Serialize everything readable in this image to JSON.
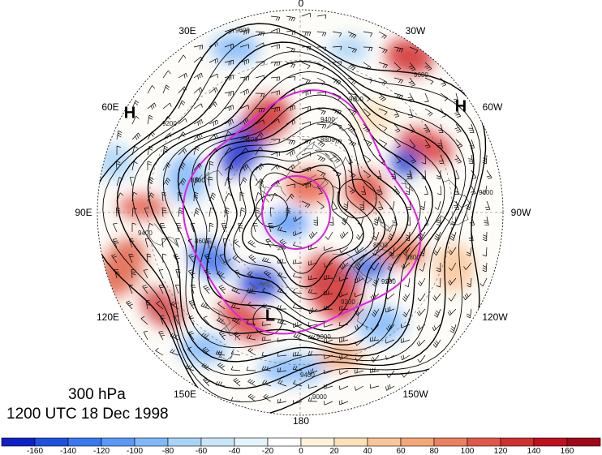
{
  "title": {
    "level": "300 hPa",
    "datetime": "1200 UTC 18 Dec 1998"
  },
  "longitude_labels": [
    {
      "text": "0",
      "lon": 0
    },
    {
      "text": "30W",
      "lon": -30
    },
    {
      "text": "60W",
      "lon": -60
    },
    {
      "text": "90W",
      "lon": -90
    },
    {
      "text": "120W",
      "lon": -120
    },
    {
      "text": "150W",
      "lon": -150
    },
    {
      "text": "180",
      "lon": 180
    },
    {
      "text": "150E",
      "lon": 150
    },
    {
      "text": "120E",
      "lon": 120
    },
    {
      "text": "90E",
      "lon": 90
    },
    {
      "text": "60E",
      "lon": 60
    },
    {
      "text": "30E",
      "lon": 30
    }
  ],
  "pressure_centers": [
    {
      "text": "H",
      "lon": 60,
      "lat": 24
    },
    {
      "text": "H",
      "lon": -60,
      "lat": 24
    },
    {
      "text": "L",
      "lon": 170,
      "lat": 48
    }
  ],
  "contour_labels": [
    "9600",
    "9400",
    "9200",
    "9000",
    "8800",
    "8600"
  ],
  "colorbar": {
    "ticks": [
      "-160",
      "-140",
      "-120",
      "-100",
      "-80",
      "-60",
      "-40",
      "-20",
      "0",
      "20",
      "40",
      "60",
      "80",
      "100",
      "120",
      "140",
      "160"
    ],
    "colors": [
      "#1020c8",
      "#2050e0",
      "#3a78f0",
      "#5c98f8",
      "#80b8fa",
      "#a8d4f8",
      "#c8e6f8",
      "#e4f2fb",
      "#ffffff",
      "#fff2d8",
      "#fde0b8",
      "#f9c698",
      "#f4a678",
      "#ec8060",
      "#e05848",
      "#d03030",
      "#c01020",
      "#a00818"
    ]
  },
  "colors": {
    "contour": "#000000",
    "magenta_contour": "#e020e0",
    "barb": "#000000",
    "coast": "#555555"
  }
}
